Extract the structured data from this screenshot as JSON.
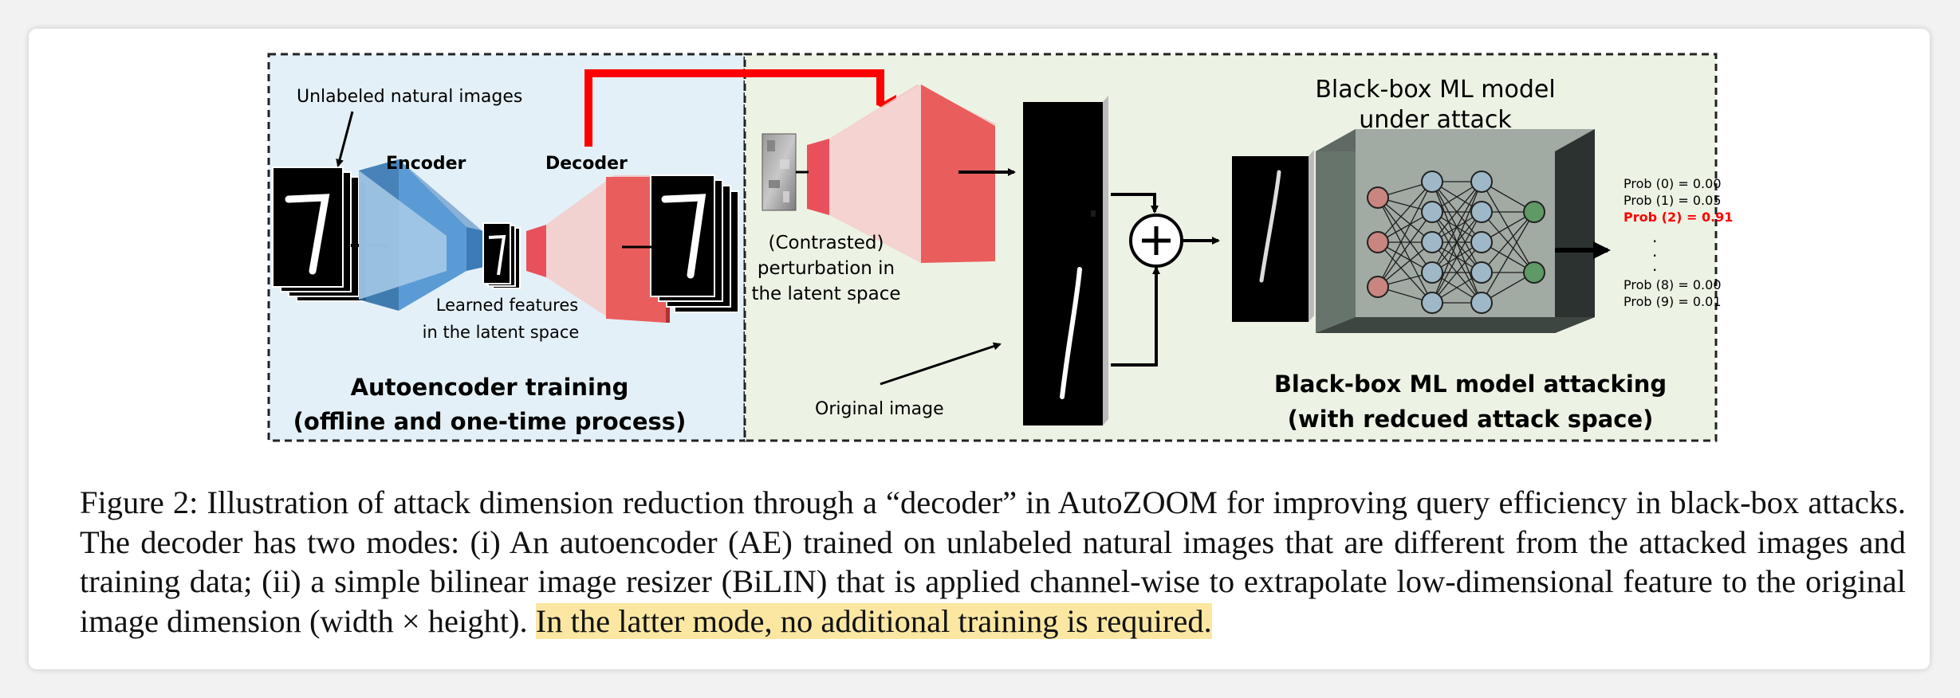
{
  "figure": {
    "left_panel": {
      "unlabeled_label": "Unlabeled natural images",
      "encoder_label": "Encoder",
      "decoder_label": "Decoder",
      "latent_label_line1": "Learned features",
      "latent_label_line2": "in the latent space",
      "title_line1": "Autoencoder training",
      "title_line2": "(offline and one-time process)",
      "bg_color": "#e3f0f7"
    },
    "right_panel": {
      "perturbation_line1": "(Contrasted)",
      "perturbation_line2": "perturbation in",
      "perturbation_line3": "the latent space",
      "original_image_label": "Original image",
      "model_title_line1": "Black-box ML model",
      "model_title_line2": "under attack",
      "title_line1": "Black-box ML model attacking",
      "title_line2": "(with redcued attack space)",
      "bg_color": "#edf3e4"
    },
    "probabilities": [
      {
        "text": "Prob (0) = 0.00",
        "highlight": false
      },
      {
        "text": "Prob (1) = 0.05",
        "highlight": false
      },
      {
        "text": "Prob (2) = 0.91",
        "highlight": true
      },
      {
        "text": ".",
        "highlight": false
      },
      {
        "text": ".",
        "highlight": false
      },
      {
        "text": ".",
        "highlight": false
      },
      {
        "text": "Prob (8) = 0.00",
        "highlight": false
      },
      {
        "text": "Prob (9) = 0.01",
        "highlight": false
      }
    ],
    "colors": {
      "encoder": "#5b9bd5",
      "decoder": "#e85a5a",
      "arrow_red": "#ff0000",
      "node_input": "#c9857f",
      "node_hidden": "#9fb8c8",
      "node_output": "#5f9a66",
      "highlight_text": "#ff0000"
    }
  },
  "caption": {
    "text": "Figure 2: Illustration of attack dimension reduction through a “decoder” in AutoZOOM for improving query efficiency in black-box attacks. The decoder has two modes: (i) An autoencoder (AE) trained on unlabeled natural images that are different from the attacked images and training data; (ii) a simple bilinear image resizer (BiLIN) that is applied channel-wise to extrapolate low-dimensional feature to the original image dimension (width × height). ",
    "highlight": "In the latter mode, no additional training is required."
  }
}
